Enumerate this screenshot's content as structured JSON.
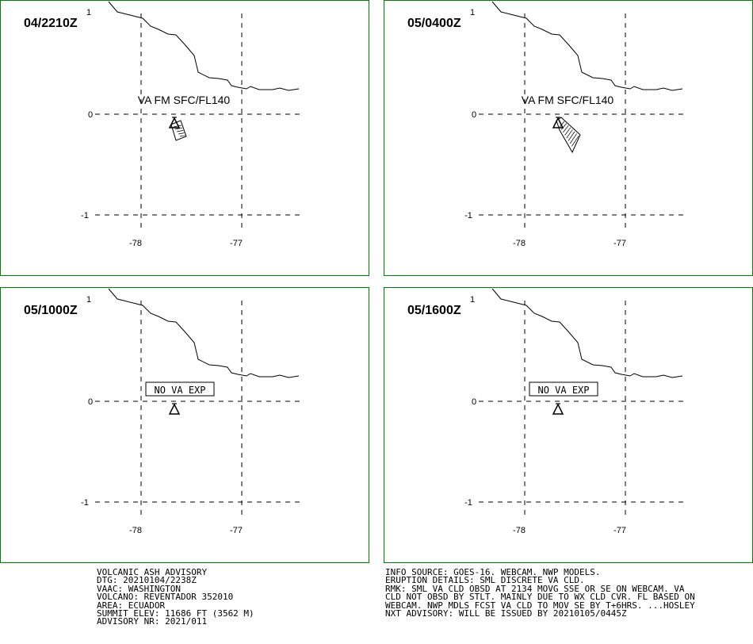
{
  "colors": {
    "panel_border": "#008000",
    "lines": "#000000",
    "background": "#ffffff"
  },
  "axes": {
    "lon_ticks": [
      "-78",
      "-77"
    ],
    "lat_ticks": [
      "1",
      "0",
      "-1"
    ]
  },
  "panels": [
    {
      "valid_time": "04/2210Z",
      "label": "VA FM SFC/FL140",
      "cloud": "small"
    },
    {
      "valid_time": "05/0400Z",
      "label": "VA FM SFC/FL140",
      "cloud": "large"
    },
    {
      "valid_time": "05/1000Z",
      "label": "NO VA EXP",
      "cloud": "none"
    },
    {
      "valid_time": "05/1600Z",
      "label": "NO VA EXP",
      "cloud": "none"
    }
  ],
  "advisory_left": [
    "VOLCANIC ASH ADVISORY",
    "DTG: 20210104/2238Z",
    "VAAC: WASHINGTON",
    "VOLCANO: REVENTADOR 352010",
    "AREA: ECUADOR",
    "SUMMIT ELEV: 11686 FT (3562 M)",
    "ADVISORY NR: 2021/011"
  ],
  "advisory_right": [
    "INFO SOURCE: GOES-16. WEBCAM. NWP MODELS.",
    "ERUPTION DETAILS: SML DISCRETE VA CLD.",
    "RMK: SML VA CLD OBSD AT 2134 MOVG SSE OR SE ON WEBCAM. VA",
    "CLD NOT OBSD BY STLT. MAINLY DUE TO WX CLD CVR. FL BASED ON",
    "WEBCAM. NWP MDLS FCST VA CLD TO MOV SE BY T+6HRS. ...HOSLEY",
    "NXT ADVISORY: WILL BE ISSUED BY 20210105/0445Z"
  ]
}
